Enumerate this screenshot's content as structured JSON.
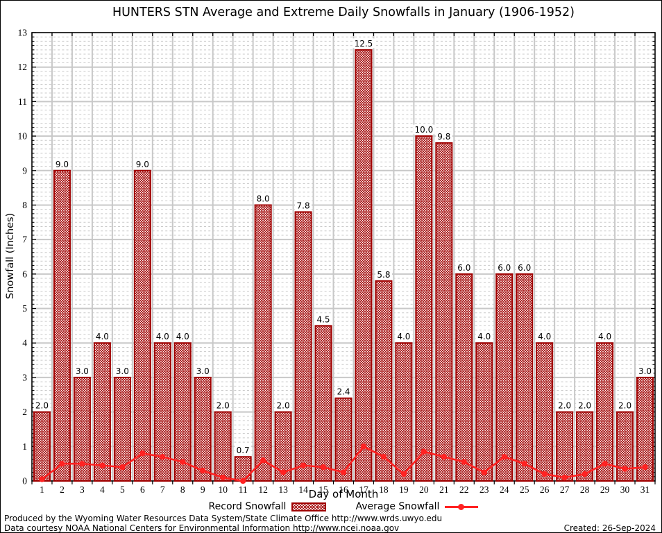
{
  "chart_data": {
    "type": "bar",
    "title": "HUNTERS STN Average and Extreme Daily Snowfalls in January (1906-1952)",
    "xlabel": "Day of Month",
    "ylabel": "Snowfall (Inches)",
    "categories": [
      1,
      2,
      3,
      4,
      5,
      6,
      7,
      8,
      9,
      10,
      11,
      12,
      13,
      14,
      15,
      16,
      17,
      18,
      19,
      20,
      21,
      22,
      23,
      24,
      25,
      26,
      27,
      28,
      29,
      30,
      31
    ],
    "series": [
      {
        "name": "Record Snowfall",
        "type": "bar",
        "values": [
          2.0,
          9.0,
          3.0,
          4.0,
          3.0,
          9.0,
          4.0,
          4.0,
          3.0,
          2.0,
          0.7,
          8.0,
          2.0,
          7.8,
          4.5,
          2.4,
          12.5,
          5.8,
          4.0,
          10.0,
          9.8,
          6.0,
          4.0,
          6.0,
          6.0,
          4.0,
          2.0,
          2.0,
          4.0,
          2.0,
          3.0
        ]
      },
      {
        "name": "Average Snowfall",
        "type": "line",
        "values": [
          0.05,
          0.5,
          0.5,
          0.45,
          0.4,
          0.8,
          0.7,
          0.55,
          0.3,
          0.1,
          0.0,
          0.6,
          0.25,
          0.45,
          0.4,
          0.25,
          1.0,
          0.7,
          0.2,
          0.85,
          0.7,
          0.55,
          0.25,
          0.7,
          0.5,
          0.2,
          0.1,
          0.2,
          0.5,
          0.35,
          0.4
        ]
      }
    ],
    "ylim": [
      0,
      13
    ],
    "yticks": [
      0,
      1,
      2,
      3,
      4,
      5,
      6,
      7,
      8,
      9,
      10,
      11,
      12,
      13
    ],
    "grid": {
      "major": "solid",
      "minor": "dotted-horizontal"
    },
    "legend_position": "bottom",
    "colors": {
      "bar": "#a00000",
      "line": "#ff2222",
      "grid_major": "#c8c8c8",
      "grid_minor": "#c9c9c9",
      "frame": "#000000"
    }
  },
  "footer": {
    "line1": "Produced by the Wyoming Water Resources Data System/State Climate Office http://www.wrds.uwyo.edu",
    "line2": "Data courtesy NOAA National Centers for Environmental Information http://www.ncei.noaa.gov",
    "created": "Created: 26-Sep-2024"
  }
}
